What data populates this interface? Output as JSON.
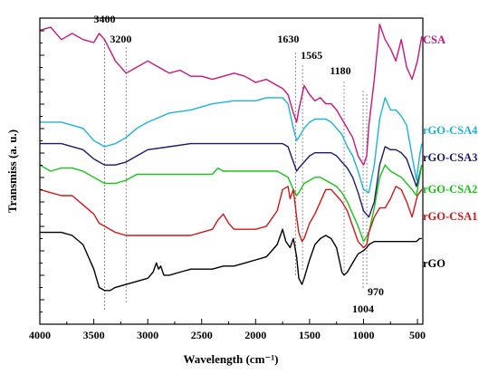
{
  "chart_data": {
    "type": "line",
    "xlabel": "Wavelength (cm⁻¹)",
    "ylabel": "Transmiss (a. u.)",
    "xlim": [
      4000,
      450
    ],
    "x_reversed": true,
    "x_ticks": [
      "4000",
      "3500",
      "3000",
      "2500",
      "2000",
      "1500",
      "1000",
      "500"
    ],
    "x_tick_values": [
      4000,
      3500,
      3000,
      2500,
      2000,
      1500,
      1000,
      500
    ],
    "y_ticks_labeled": false,
    "grid": false,
    "legend": "none",
    "colors": {
      "CSA": "#c8157f",
      "rGO-CSA4": "#1cb2dc",
      "rGO-CSA3": "#1a1a6e",
      "rGO-CSA2": "#17c417",
      "rGO-CSA1": "#d01818",
      "rGO": "#000000"
    },
    "reference_lines": [
      {
        "x": 3400,
        "label": "3400"
      },
      {
        "x": 3200,
        "label": "3200"
      },
      {
        "x": 1630,
        "label": "1630"
      },
      {
        "x": 1565,
        "label": "1565"
      },
      {
        "x": 1180,
        "label": "1180"
      },
      {
        "x": 1004,
        "label": "1004"
      },
      {
        "x": 970,
        "label": "970"
      }
    ],
    "series": [
      {
        "name": "CSA",
        "x": [
          4000,
          3900,
          3800,
          3700,
          3600,
          3500,
          3450,
          3400,
          3300,
          3200,
          3100,
          3000,
          2900,
          2800,
          2700,
          2600,
          2500,
          2400,
          2300,
          2200,
          2100,
          2000,
          1900,
          1800,
          1750,
          1700,
          1650,
          1620,
          1600,
          1550,
          1500,
          1450,
          1400,
          1350,
          1300,
          1250,
          1200,
          1150,
          1100,
          1050,
          1000,
          970,
          950,
          900,
          850,
          800,
          750,
          700,
          650,
          600,
          550,
          500,
          460
        ],
        "y": [
          0.96,
          0.97,
          0.93,
          0.95,
          0.93,
          0.92,
          0.95,
          0.93,
          0.86,
          0.82,
          0.84,
          0.86,
          0.84,
          0.82,
          0.83,
          0.81,
          0.81,
          0.8,
          0.81,
          0.82,
          0.81,
          0.79,
          0.8,
          0.78,
          0.77,
          0.75,
          0.69,
          0.66,
          0.7,
          0.78,
          0.75,
          0.73,
          0.74,
          0.72,
          0.72,
          0.7,
          0.67,
          0.64,
          0.61,
          0.55,
          0.52,
          0.55,
          0.65,
          0.8,
          0.98,
          0.93,
          0.9,
          0.86,
          0.93,
          0.84,
          0.8,
          0.86,
          0.94
        ]
      },
      {
        "name": "rGO-CSA4",
        "x": [
          4000,
          3800,
          3600,
          3500,
          3400,
          3300,
          3200,
          3100,
          3000,
          2800,
          2600,
          2400,
          2200,
          2000,
          1900,
          1800,
          1750,
          1700,
          1650,
          1620,
          1600,
          1550,
          1500,
          1450,
          1400,
          1350,
          1300,
          1250,
          1200,
          1150,
          1100,
          1050,
          1000,
          950,
          900,
          850,
          800,
          750,
          700,
          650,
          600,
          550,
          510,
          480,
          460
        ],
        "y": [
          0.66,
          0.66,
          0.64,
          0.6,
          0.58,
          0.59,
          0.61,
          0.64,
          0.66,
          0.69,
          0.7,
          0.72,
          0.73,
          0.73,
          0.74,
          0.74,
          0.74,
          0.72,
          0.64,
          0.6,
          0.61,
          0.64,
          0.66,
          0.67,
          0.67,
          0.67,
          0.66,
          0.64,
          0.62,
          0.58,
          0.55,
          0.5,
          0.44,
          0.43,
          0.52,
          0.67,
          0.74,
          0.7,
          0.7,
          0.68,
          0.65,
          0.55,
          0.47,
          0.55,
          0.59
        ]
      },
      {
        "name": "rGO-CSA3",
        "x": [
          4000,
          3800,
          3600,
          3500,
          3400,
          3300,
          3200,
          3100,
          3000,
          2800,
          2600,
          2400,
          2200,
          2000,
          1900,
          1800,
          1750,
          1700,
          1650,
          1620,
          1600,
          1550,
          1500,
          1450,
          1400,
          1350,
          1300,
          1250,
          1200,
          1150,
          1100,
          1050,
          1000,
          950,
          900,
          850,
          800,
          750,
          700,
          650,
          600,
          550,
          510,
          480,
          460
        ],
        "y": [
          0.59,
          0.59,
          0.57,
          0.54,
          0.52,
          0.52,
          0.53,
          0.55,
          0.57,
          0.58,
          0.59,
          0.59,
          0.59,
          0.59,
          0.59,
          0.59,
          0.59,
          0.58,
          0.53,
          0.5,
          0.51,
          0.53,
          0.55,
          0.56,
          0.56,
          0.56,
          0.56,
          0.55,
          0.53,
          0.51,
          0.48,
          0.43,
          0.37,
          0.35,
          0.4,
          0.52,
          0.58,
          0.57,
          0.57,
          0.56,
          0.54,
          0.49,
          0.45,
          0.49,
          0.52
        ]
      },
      {
        "name": "rGO-CSA2",
        "x": [
          4000,
          3900,
          3800,
          3700,
          3600,
          3500,
          3450,
          3400,
          3300,
          3200,
          3100,
          3000,
          2900,
          2800,
          2600,
          2400,
          2350,
          2300,
          2200,
          2000,
          1900,
          1800,
          1750,
          1700,
          1650,
          1620,
          1600,
          1550,
          1500,
          1450,
          1400,
          1350,
          1300,
          1250,
          1200,
          1150,
          1100,
          1050,
          1000,
          950,
          900,
          850,
          800,
          750,
          700,
          650,
          600,
          550,
          510,
          480,
          460
        ],
        "y": [
          0.52,
          0.5,
          0.51,
          0.51,
          0.5,
          0.48,
          0.47,
          0.46,
          0.46,
          0.47,
          0.49,
          0.49,
          0.49,
          0.49,
          0.49,
          0.49,
          0.51,
          0.5,
          0.5,
          0.5,
          0.5,
          0.5,
          0.49,
          0.48,
          0.44,
          0.42,
          0.43,
          0.46,
          0.47,
          0.48,
          0.48,
          0.47,
          0.46,
          0.45,
          0.43,
          0.4,
          0.36,
          0.32,
          0.27,
          0.3,
          0.38,
          0.48,
          0.52,
          0.5,
          0.49,
          0.48,
          0.46,
          0.44,
          0.42,
          0.48,
          0.52
        ]
      },
      {
        "name": "rGO-CSA1",
        "x": [
          4000,
          3900,
          3800,
          3700,
          3600,
          3500,
          3450,
          3400,
          3300,
          3200,
          3100,
          3000,
          2900,
          2800,
          2700,
          2600,
          2500,
          2400,
          2350,
          2300,
          2250,
          2200,
          2100,
          2000,
          1900,
          1800,
          1750,
          1700,
          1680,
          1650,
          1620,
          1600,
          1570,
          1550,
          1500,
          1450,
          1400,
          1350,
          1300,
          1250,
          1200,
          1150,
          1100,
          1050,
          1000,
          970,
          950,
          900,
          850,
          800,
          750,
          700,
          650,
          600,
          550,
          500,
          460
        ],
        "y": [
          0.44,
          0.43,
          0.42,
          0.42,
          0.39,
          0.36,
          0.33,
          0.32,
          0.3,
          0.29,
          0.29,
          0.29,
          0.29,
          0.29,
          0.29,
          0.29,
          0.3,
          0.31,
          0.34,
          0.36,
          0.33,
          0.31,
          0.31,
          0.31,
          0.32,
          0.37,
          0.44,
          0.45,
          0.41,
          0.44,
          0.35,
          0.3,
          0.27,
          0.28,
          0.33,
          0.36,
          0.4,
          0.44,
          0.44,
          0.42,
          0.4,
          0.37,
          0.32,
          0.27,
          0.25,
          0.26,
          0.3,
          0.35,
          0.38,
          0.38,
          0.41,
          0.45,
          0.44,
          0.4,
          0.35,
          0.42,
          0.44
        ]
      },
      {
        "name": "rGO",
        "x": [
          4000,
          3900,
          3800,
          3700,
          3600,
          3500,
          3450,
          3400,
          3350,
          3300,
          3200,
          3100,
          3000,
          2950,
          2920,
          2900,
          2880,
          2850,
          2800,
          2700,
          2600,
          2500,
          2400,
          2300,
          2200,
          2100,
          2000,
          1900,
          1800,
          1750,
          1720,
          1700,
          1680,
          1650,
          1620,
          1600,
          1570,
          1550,
          1500,
          1450,
          1400,
          1350,
          1300,
          1250,
          1200,
          1180,
          1150,
          1100,
          1050,
          1000,
          970,
          950,
          900,
          850,
          800,
          750,
          700,
          650,
          600,
          550,
          510,
          480,
          460
        ],
        "y": [
          0.3,
          0.3,
          0.3,
          0.29,
          0.26,
          0.18,
          0.12,
          0.11,
          0.11,
          0.12,
          0.13,
          0.14,
          0.15,
          0.17,
          0.2,
          0.18,
          0.19,
          0.16,
          0.16,
          0.17,
          0.18,
          0.18,
          0.18,
          0.19,
          0.19,
          0.2,
          0.21,
          0.22,
          0.26,
          0.31,
          0.27,
          0.26,
          0.25,
          0.28,
          0.22,
          0.15,
          0.13,
          0.15,
          0.21,
          0.26,
          0.28,
          0.29,
          0.28,
          0.25,
          0.17,
          0.16,
          0.17,
          0.2,
          0.23,
          0.24,
          0.25,
          0.26,
          0.27,
          0.27,
          0.27,
          0.27,
          0.27,
          0.27,
          0.27,
          0.27,
          0.27,
          0.28,
          0.28
        ]
      }
    ]
  }
}
